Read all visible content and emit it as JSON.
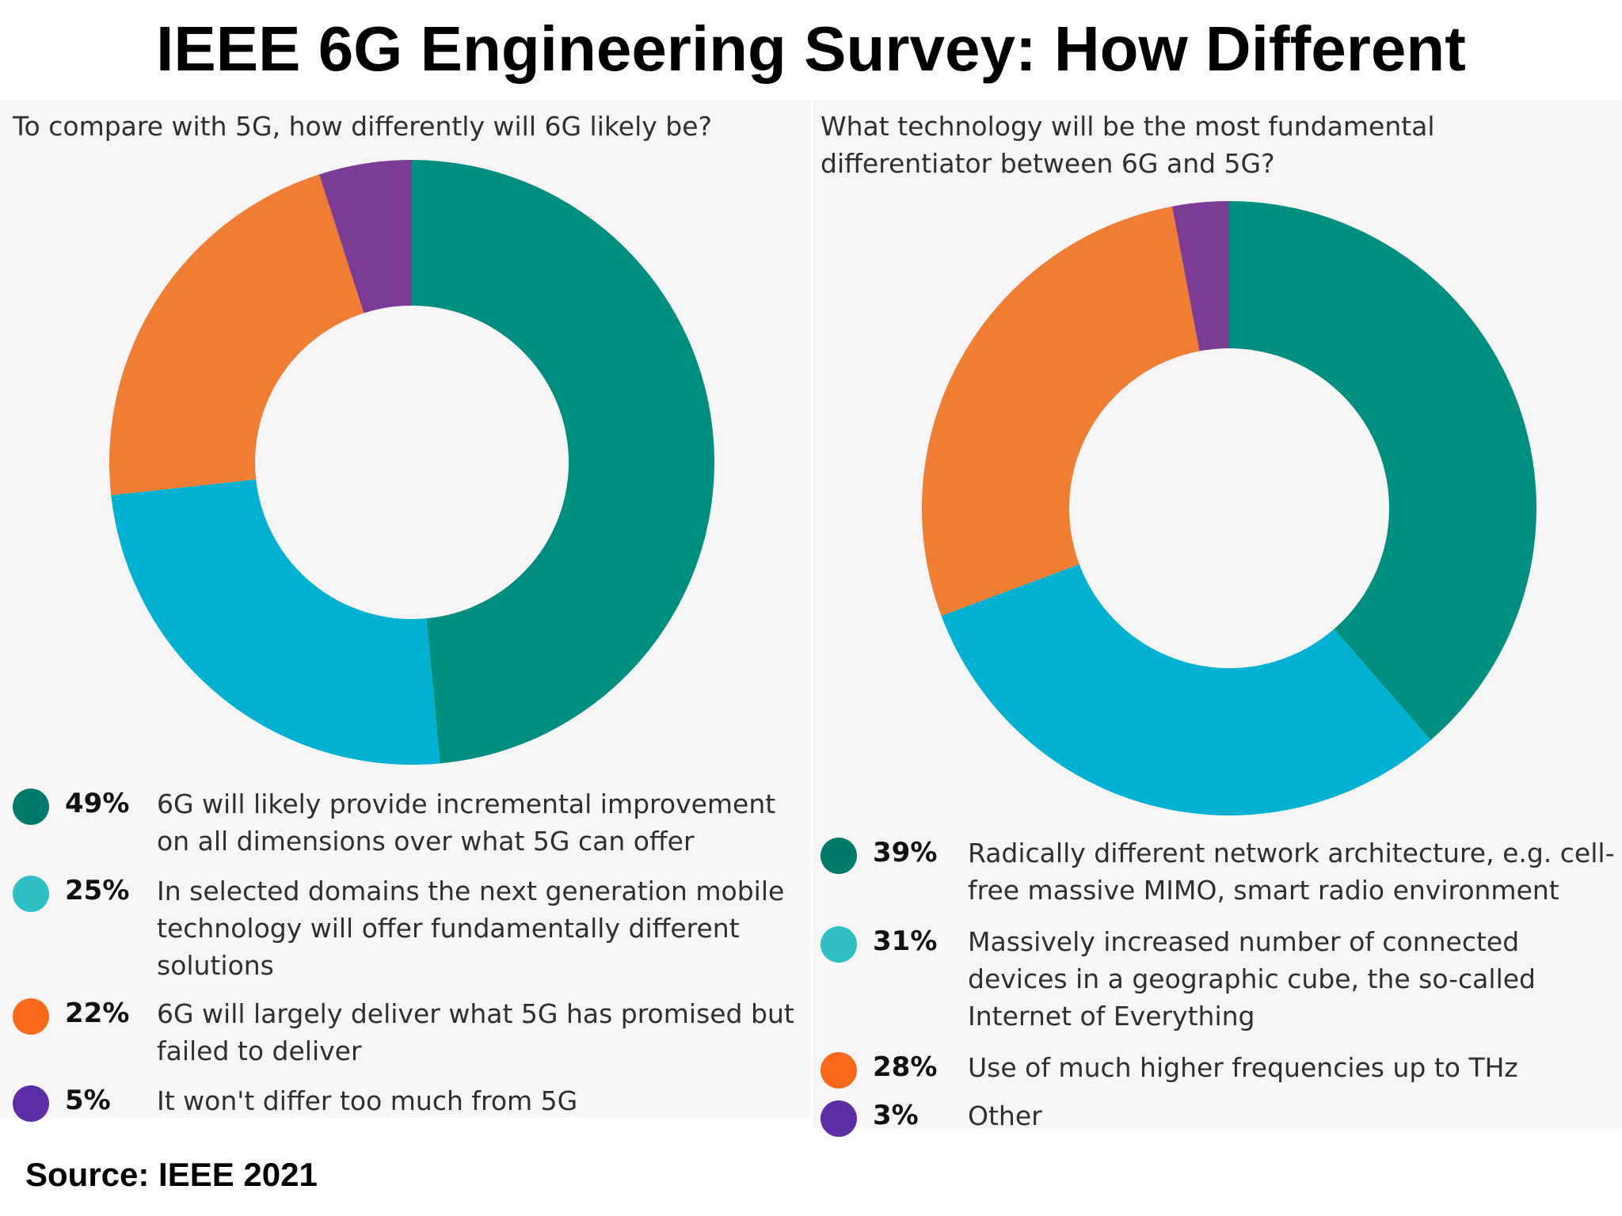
{
  "title": "IEEE 6G Engineering Survey: How Different",
  "source": "Source: IEEE 2021",
  "colors": {
    "teal": "#008e7e",
    "cyan": "#00b1d2",
    "orange": "#ef7d33",
    "purple": "#7b3c96",
    "legend_teal": "#007a6b",
    "legend_cyan": "#2fbfc4",
    "legend_orange": "#f86a1a",
    "legend_purple": "#5b2ea6"
  },
  "chart_data": [
    {
      "type": "pie",
      "title": "To compare with 5G, how differently will 6G likely be?",
      "donut": true,
      "series": [
        {
          "label": "6G will likely provide incremental improvement on all dimensions over what 5G can offer",
          "value": 49,
          "pct_label": "49%",
          "color": "#008e7e",
          "legend_color": "#007a6b"
        },
        {
          "label": "In selected domains the next generation mobile technology will offer fundamentally different solutions",
          "value": 25,
          "pct_label": "25%",
          "color": "#00b1d2",
          "legend_color": "#2fbfc4"
        },
        {
          "label": "6G will largely deliver what 5G has promised but failed to deliver",
          "value": 22,
          "pct_label": "22%",
          "color": "#ef7d33",
          "legend_color": "#f86a1a"
        },
        {
          "label": "It won't differ too much from 5G",
          "value": 5,
          "pct_label": "5%",
          "color": "#7b3c96",
          "legend_color": "#5b2ea6"
        }
      ]
    },
    {
      "type": "pie",
      "title": "What technology will be the most fundamental differentiator between 6G and 5G?",
      "donut": true,
      "series": [
        {
          "label": "Radically different network architecture, e.g. cell-free massive MIMO, smart radio environment",
          "value": 39,
          "pct_label": "39%",
          "color": "#008e7e",
          "legend_color": "#007a6b"
        },
        {
          "label": "Massively increased number of connected devices in a geographic cube, the so-called Internet of Everything",
          "value": 31,
          "pct_label": "31%",
          "color": "#00b1d2",
          "legend_color": "#2fbfc4"
        },
        {
          "label": "Use of much higher frequencies up to THz",
          "value": 28,
          "pct_label": "28%",
          "color": "#ef7d33",
          "legend_color": "#f86a1a"
        },
        {
          "label": "Other",
          "value": 3,
          "pct_label": "3%",
          "color": "#7b3c96",
          "legend_color": "#5b2ea6"
        }
      ]
    }
  ]
}
